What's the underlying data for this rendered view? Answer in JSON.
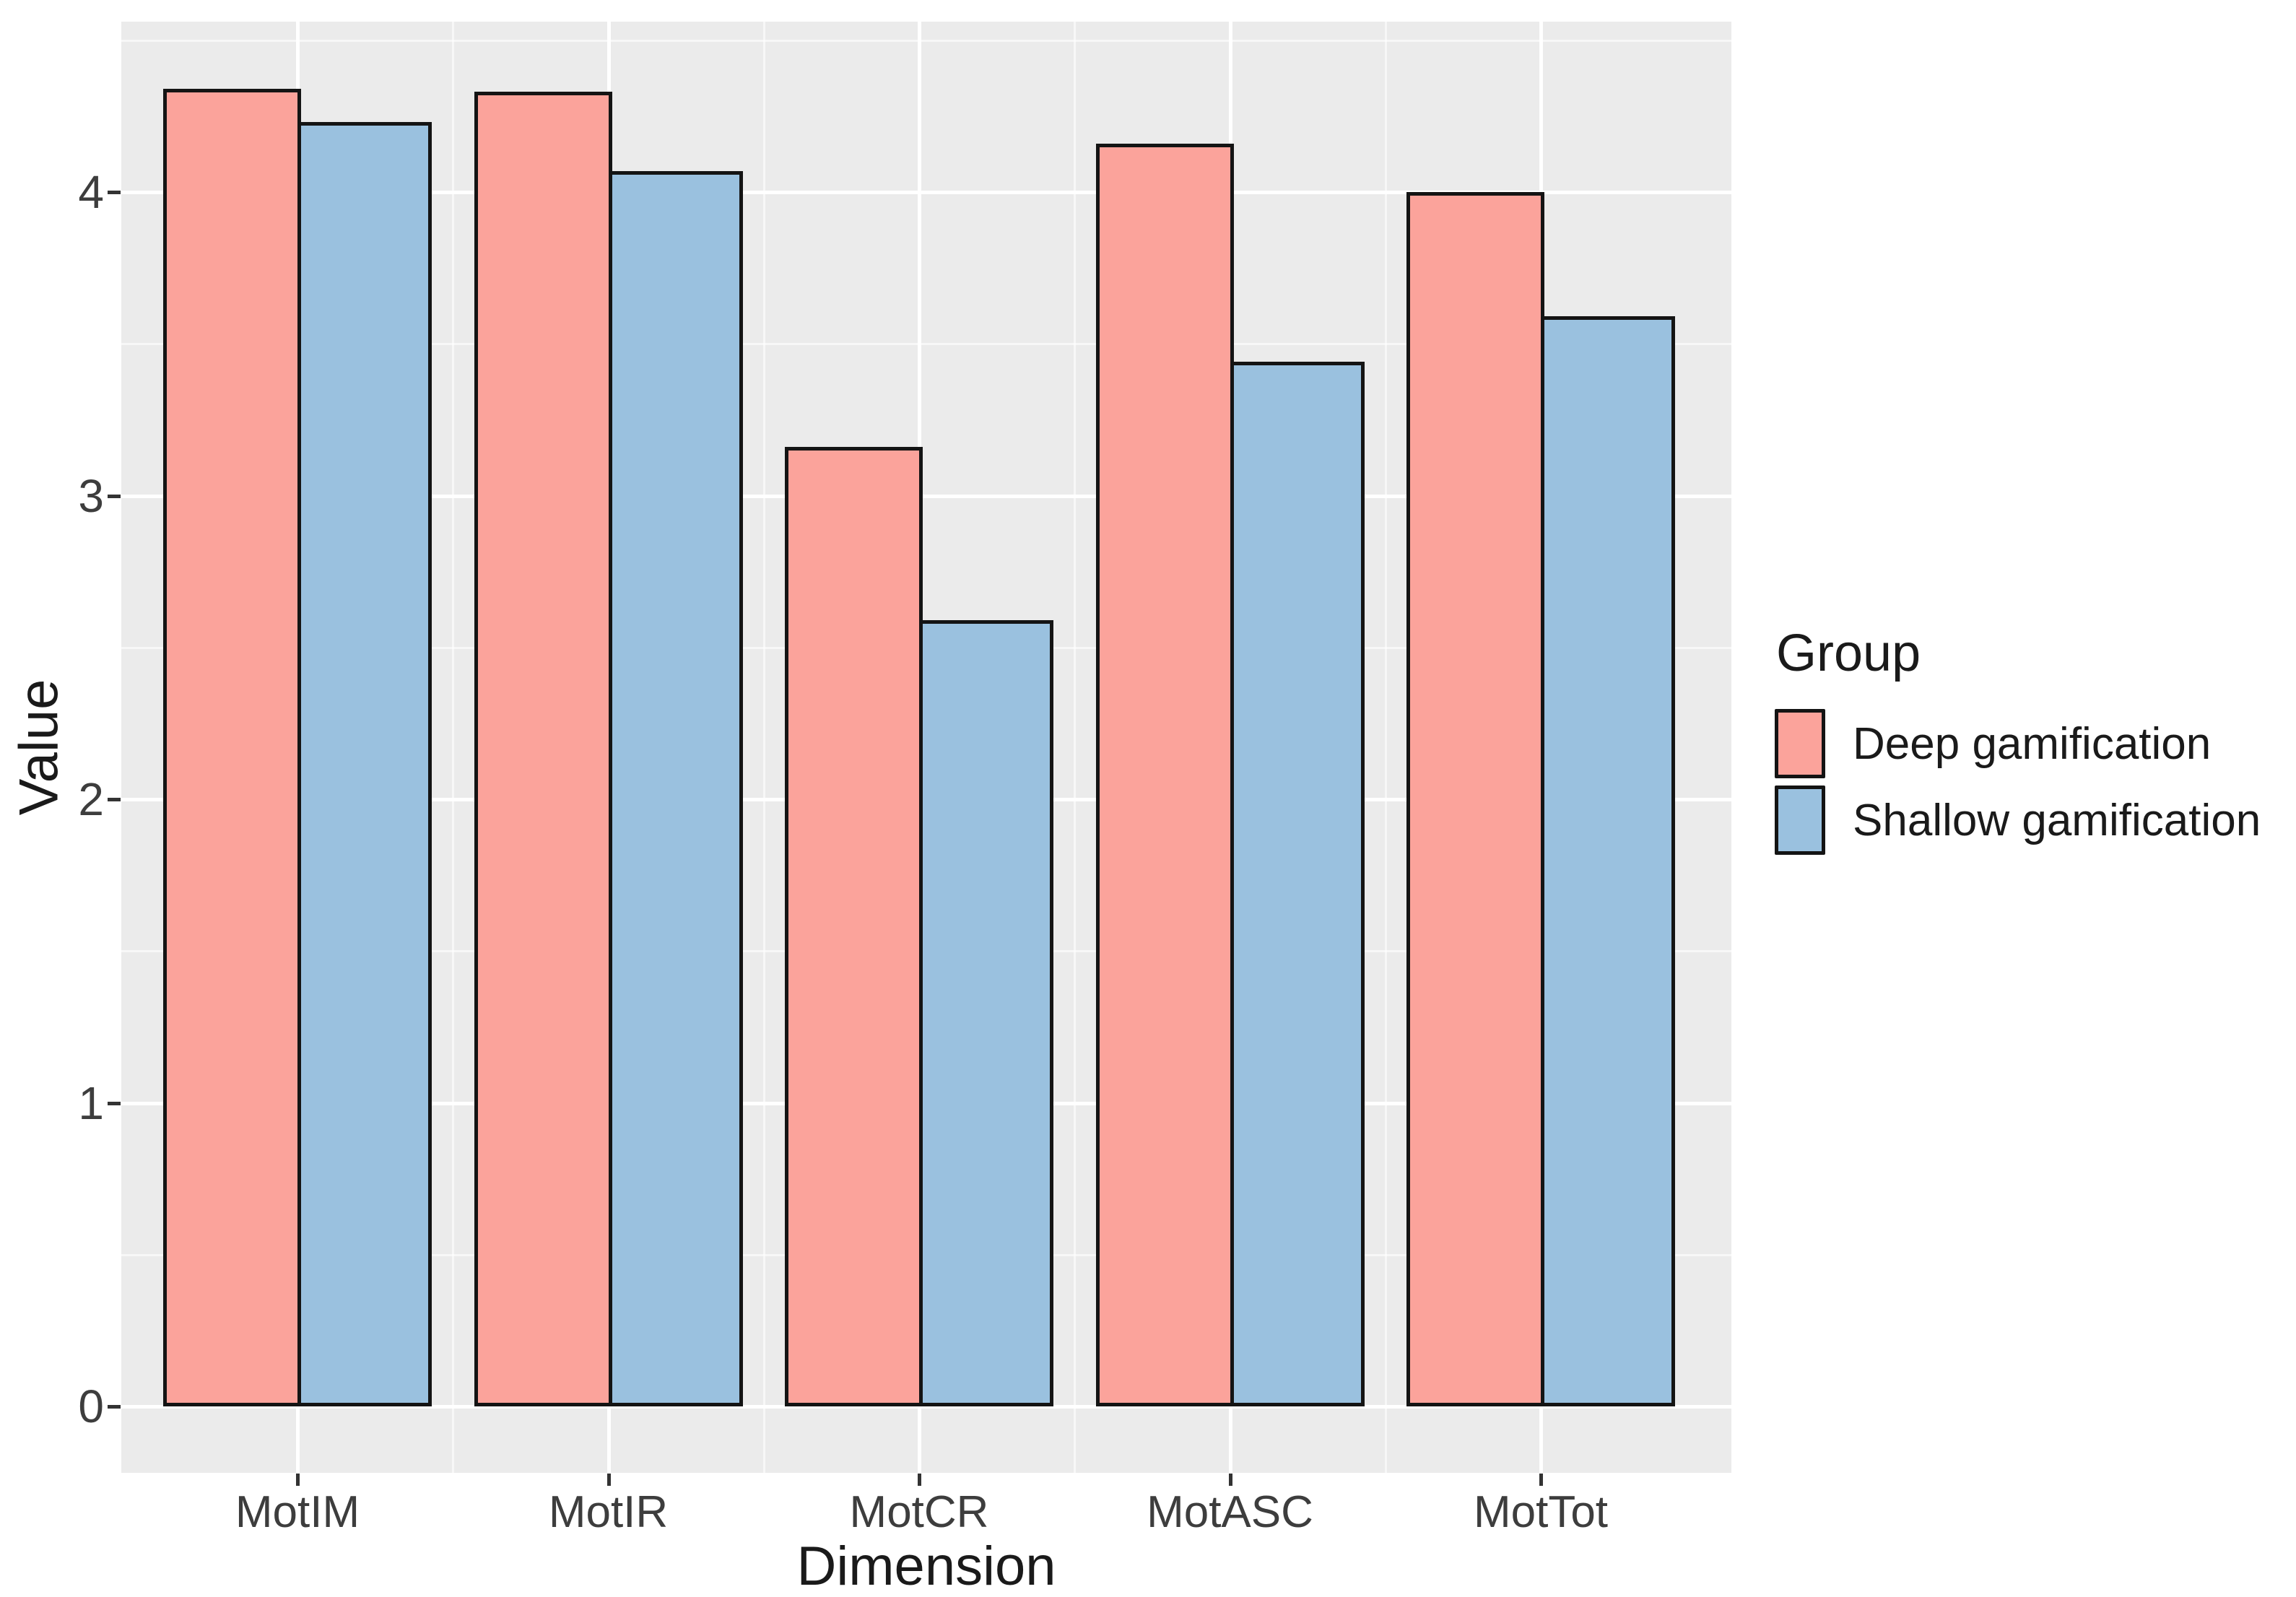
{
  "chart_data": {
    "type": "bar",
    "categories": [
      "MotIM",
      "MotIR",
      "MotCR",
      "MotASC",
      "MotTot"
    ],
    "series": [
      {
        "name": "Deep gamification",
        "color": "#FBA39B",
        "values": [
          4.34,
          4.33,
          3.16,
          4.16,
          4.0
        ]
      },
      {
        "name": "Shallow gamification",
        "color": "#9AC1DF",
        "values": [
          4.23,
          4.07,
          2.59,
          3.44,
          3.59
        ]
      }
    ],
    "title": "",
    "xlabel": "Dimension",
    "ylabel": "Value",
    "yticks": [
      0,
      1,
      2,
      3,
      4
    ],
    "ylim": [
      -0.22,
      4.56
    ],
    "grid": "white major gridlines with faint minor gridlines on gray panel",
    "legend_position": "right",
    "legend_title": "Group",
    "panel_bg": "#EBEBEB",
    "bar_border_color": "#141414"
  }
}
